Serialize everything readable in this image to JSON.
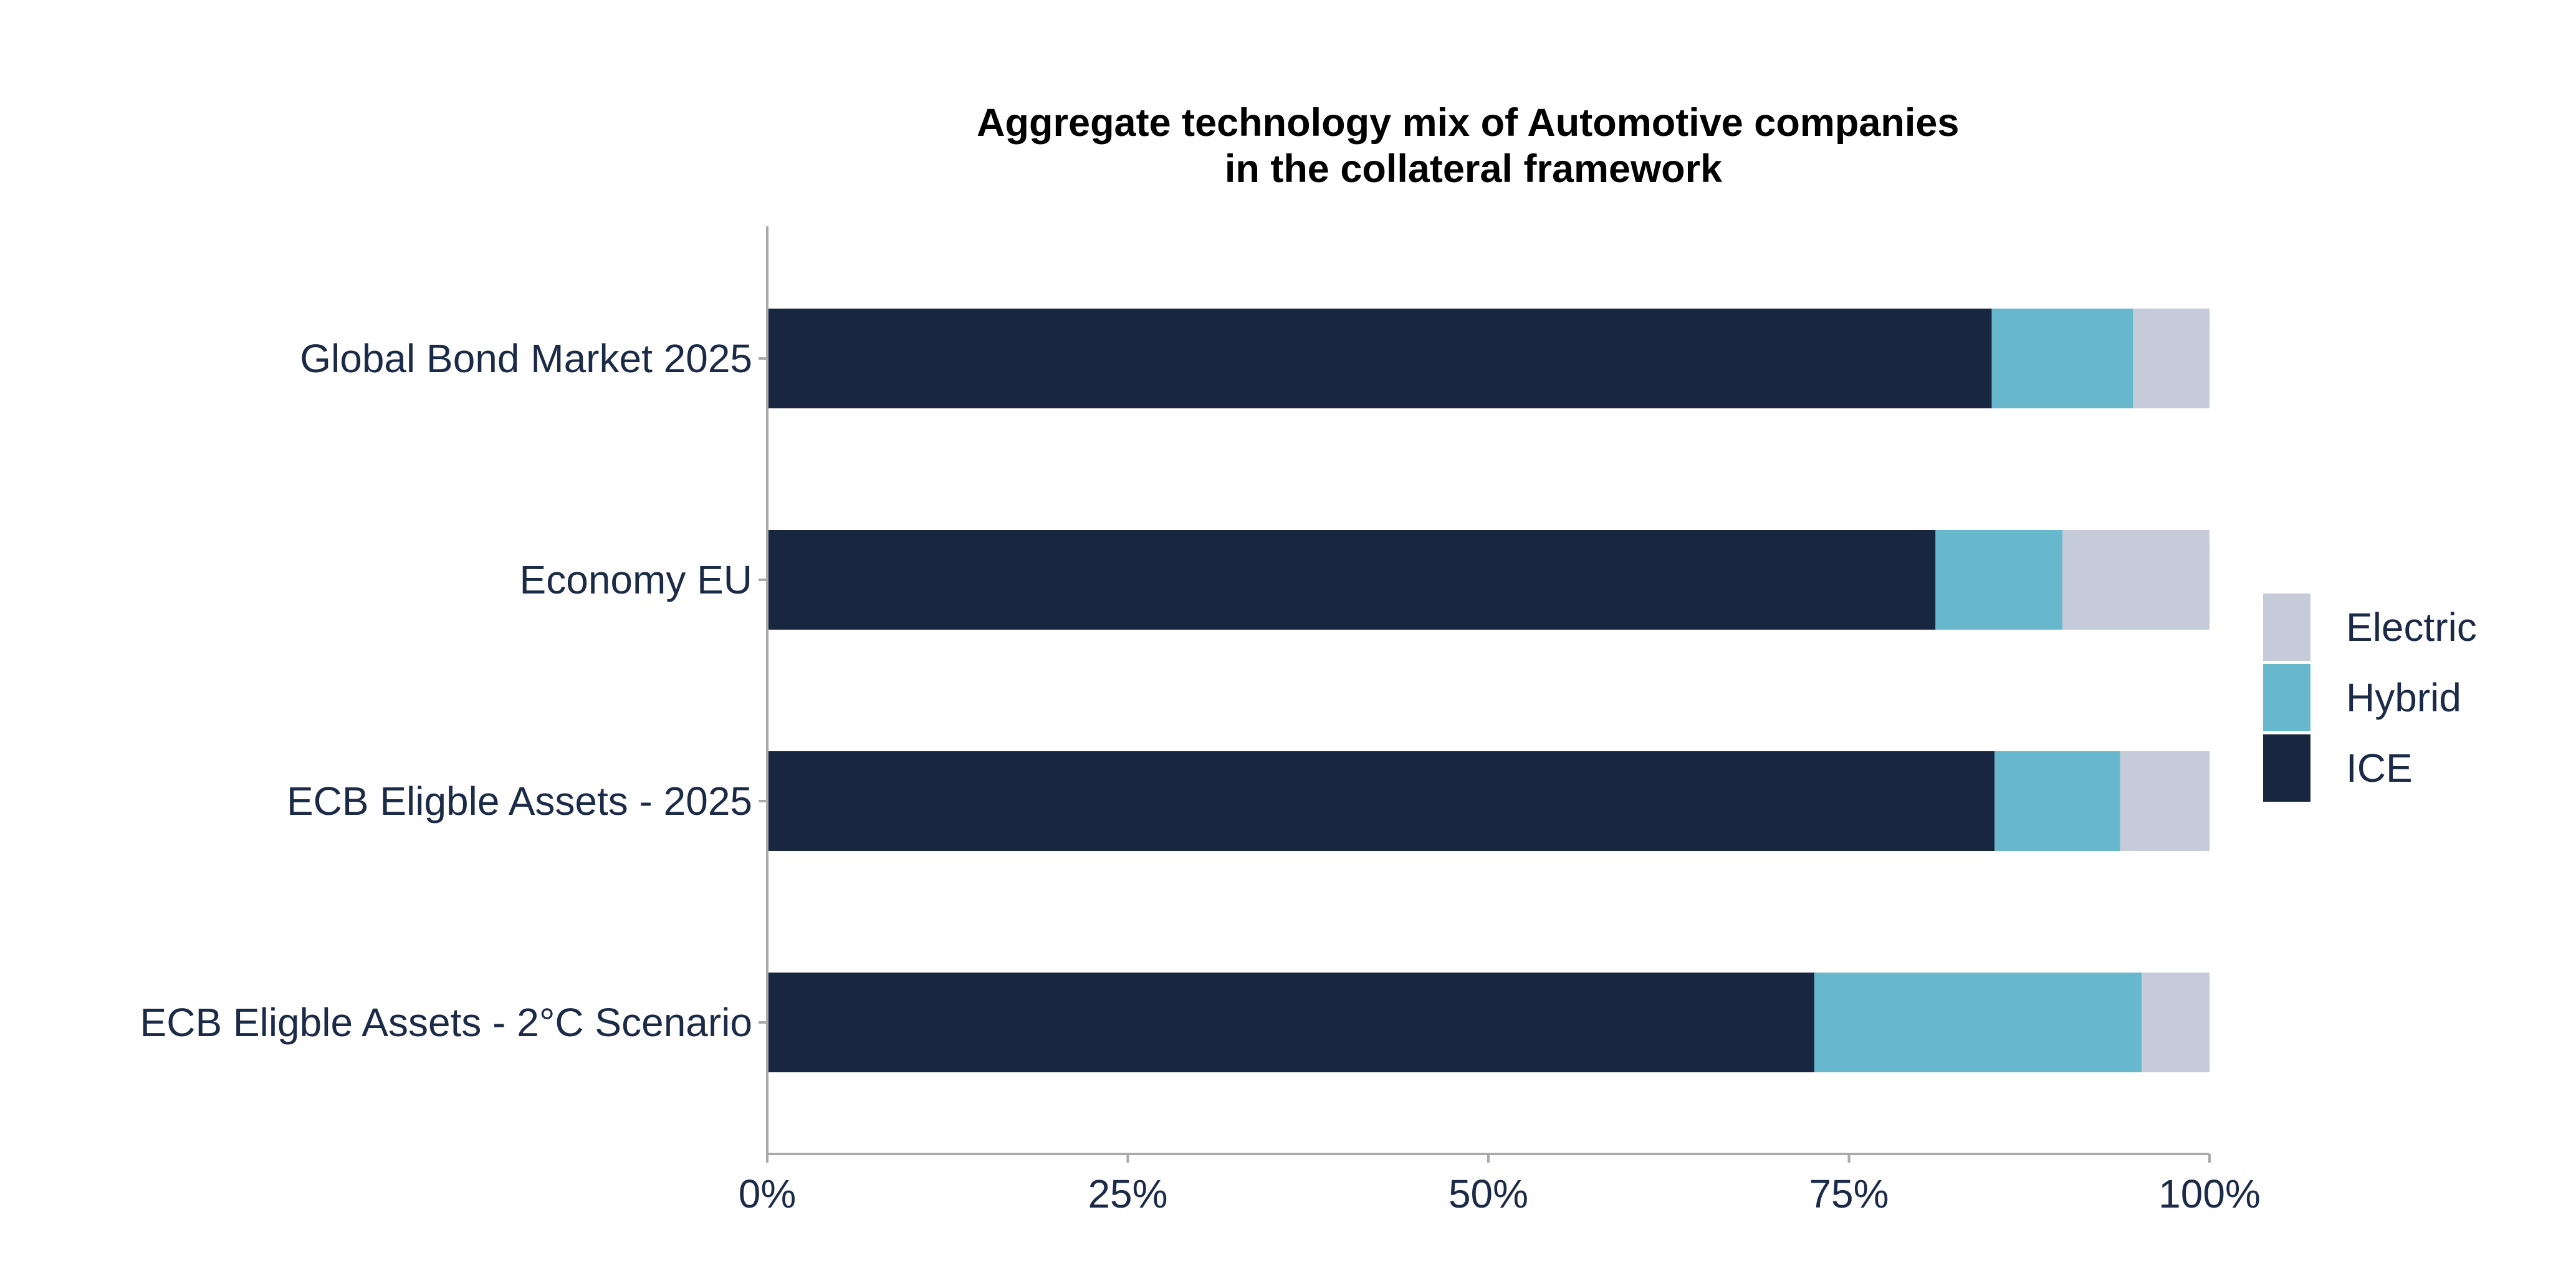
{
  "chart_data": {
    "type": "bar",
    "orientation": "horizontal",
    "stacked": true,
    "title": "Aggregate technology mix of Automotive companies\nin the collateral framework",
    "xlabel": "",
    "ylabel": "",
    "xlim": [
      0,
      100
    ],
    "x_ticks": [
      "0%",
      "25%",
      "50%",
      "75%",
      "100%"
    ],
    "categories": [
      "Global Bond Market 2025",
      "Economy EU",
      "ECB Eligble Assets - 2025",
      "ECB Eligble Assets - 2°C Scenario"
    ],
    "series": [
      {
        "name": "ICE",
        "color": "#18263f",
        "values": [
          84.9,
          81.0,
          85.1,
          72.6
        ]
      },
      {
        "name": "Hybrid",
        "color": "#67b8cd",
        "values": [
          9.8,
          8.8,
          8.7,
          22.7
        ]
      },
      {
        "name": "Electric",
        "color": "#c5cbd8",
        "values": [
          5.3,
          10.2,
          6.2,
          4.7
        ]
      }
    ],
    "legend": {
      "position": "right",
      "order": [
        "Electric",
        "Hybrid",
        "ICE"
      ]
    },
    "grid": false
  }
}
